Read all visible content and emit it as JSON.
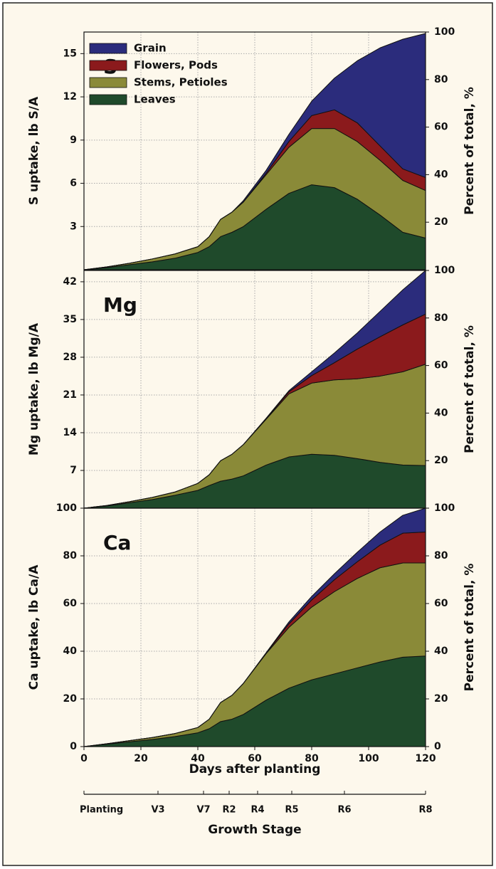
{
  "chart_data": [
    {
      "type": "area",
      "label": "S",
      "ylabel": "S uptake, lb S/A",
      "y2label": "Percent of total, %",
      "x": [
        0,
        8,
        16,
        24,
        32,
        40,
        44,
        48,
        52,
        56,
        64,
        72,
        80,
        88,
        96,
        104,
        112,
        120
      ],
      "series": [
        {
          "name": "Grain",
          "color": "#2b2c7c",
          "values": [
            0,
            0,
            0,
            0,
            0,
            0,
            0,
            0,
            0,
            0.1,
            0.2,
            0.5,
            1.0,
            2.2,
            4.3,
            6.8,
            9.0,
            10.0
          ]
        },
        {
          "name": "Flowers, Pods",
          "color": "#8b1a1c",
          "values": [
            0,
            0,
            0,
            0,
            0,
            0,
            0,
            0,
            0,
            0,
            0.1,
            0.4,
            0.9,
            1.3,
            1.3,
            1.0,
            0.8,
            0.9
          ]
        },
        {
          "name": "Stems, Petioles",
          "color": "#8a8a38",
          "values": [
            0,
            0.05,
            0.1,
            0.2,
            0.3,
            0.4,
            0.7,
            1.2,
            1.4,
            1.7,
            2.4,
            3.2,
            3.9,
            4.1,
            4.0,
            3.8,
            3.6,
            3.3
          ]
        },
        {
          "name": "Leaves",
          "color": "#1f4a2b",
          "values": [
            0,
            0.15,
            0.35,
            0.55,
            0.8,
            1.2,
            1.6,
            2.3,
            2.6,
            3.0,
            4.2,
            5.3,
            5.9,
            5.7,
            4.9,
            3.8,
            2.6,
            2.2
          ]
        }
      ],
      "ylim": [
        0,
        16.5
      ],
      "yticks": [
        3,
        6,
        9,
        12,
        15
      ],
      "y2lim": [
        0,
        100
      ],
      "y2ticks": [
        20,
        40,
        60,
        80,
        100
      ],
      "grid": true,
      "legend": "upper left"
    },
    {
      "type": "area",
      "label": "Mg",
      "ylabel": "Mg uptake, lb Mg/A",
      "y2label": "Percent of total, %",
      "x": [
        0,
        8,
        16,
        24,
        32,
        40,
        44,
        48,
        52,
        56,
        64,
        72,
        80,
        88,
        96,
        104,
        112,
        120
      ],
      "series": [
        {
          "color": "#2b2c7c",
          "values": [
            0,
            0,
            0,
            0,
            0,
            0,
            0,
            0,
            0,
            0,
            0.1,
            0.2,
            0.7,
            1.8,
            3.0,
            4.7,
            6.5,
            8.1
          ]
        },
        {
          "color": "#8b1a1c",
          "values": [
            0,
            0,
            0,
            0,
            0,
            0,
            0,
            0,
            0,
            0,
            0.1,
            0.4,
            1.4,
            3.2,
            5.5,
            7.3,
            8.7,
            9.3
          ]
        },
        {
          "color": "#8a8a38",
          "values": [
            0,
            0.1,
            0.2,
            0.4,
            0.6,
            1.3,
            2.0,
            3.8,
            4.6,
            5.8,
            8.5,
            11.7,
            13.2,
            14.0,
            14.8,
            16.0,
            17.3,
            18.8
          ]
        },
        {
          "color": "#1f4a2b",
          "values": [
            0,
            0.4,
            1.0,
            1.6,
            2.4,
            3.3,
            4.2,
            5.0,
            5.4,
            6.0,
            8.0,
            9.5,
            10.0,
            9.8,
            9.2,
            8.5,
            8.0,
            7.9
          ]
        }
      ],
      "ylim": [
        0,
        44.1
      ],
      "yticks": [
        7,
        14,
        21,
        28,
        35,
        42
      ],
      "y2lim": [
        0,
        100
      ],
      "y2ticks": [
        20,
        40,
        60,
        80,
        100
      ],
      "grid": true
    },
    {
      "type": "area",
      "label": "Ca",
      "ylabel": "Ca uptake, lb Ca/A",
      "y2label": "Percent of total, %",
      "x": [
        0,
        8,
        16,
        24,
        32,
        40,
        44,
        48,
        52,
        56,
        64,
        72,
        80,
        88,
        96,
        104,
        112,
        120
      ],
      "series": [
        {
          "color": "#2b2c7c",
          "values": [
            0,
            0,
            0,
            0,
            0,
            0,
            0,
            0,
            0,
            0,
            0.2,
            0.8,
            1.5,
            2.5,
            4.0,
            5.5,
            7.5,
            10.0
          ]
        },
        {
          "color": "#8b1a1c",
          "values": [
            0,
            0,
            0,
            0,
            0,
            0,
            0,
            0,
            0,
            0,
            0.2,
            1.5,
            3.0,
            5.0,
            7.0,
            9.5,
            12.5,
            13.0
          ]
        },
        {
          "color": "#8a8a38",
          "values": [
            0,
            0.2,
            0.5,
            0.8,
            1.3,
            2.2,
            4.0,
            8.0,
            10.0,
            13.0,
            19.5,
            25.5,
            30.5,
            34.5,
            37.5,
            39.5,
            39.5,
            39.0
          ]
        },
        {
          "color": "#1f4a2b",
          "values": [
            0,
            1.0,
            2.0,
            3.0,
            4.2,
            5.8,
            7.5,
            10.5,
            11.5,
            13.5,
            19.5,
            24.5,
            28.0,
            30.5,
            33.0,
            35.5,
            37.5,
            38.0
          ]
        }
      ],
      "ylim": [
        0,
        100
      ],
      "yticks": [
        0,
        20,
        40,
        60,
        80,
        100
      ],
      "y2lim": [
        0,
        100
      ],
      "y2ticks": [
        0,
        20,
        40,
        60,
        80,
        100
      ],
      "xlabel": "Days after planting",
      "xlim": [
        0,
        120
      ],
      "xticks": [
        0,
        20,
        40,
        60,
        80,
        100,
        120
      ],
      "grid": true
    }
  ],
  "stage_axis": {
    "title": "Growth Stage",
    "categories": [
      "Planting",
      "V3",
      "V7",
      "R2",
      "R4",
      "R5",
      "R6",
      "R8"
    ],
    "x": [
      0,
      26,
      42,
      51,
      61,
      73,
      91.5,
      120
    ]
  }
}
